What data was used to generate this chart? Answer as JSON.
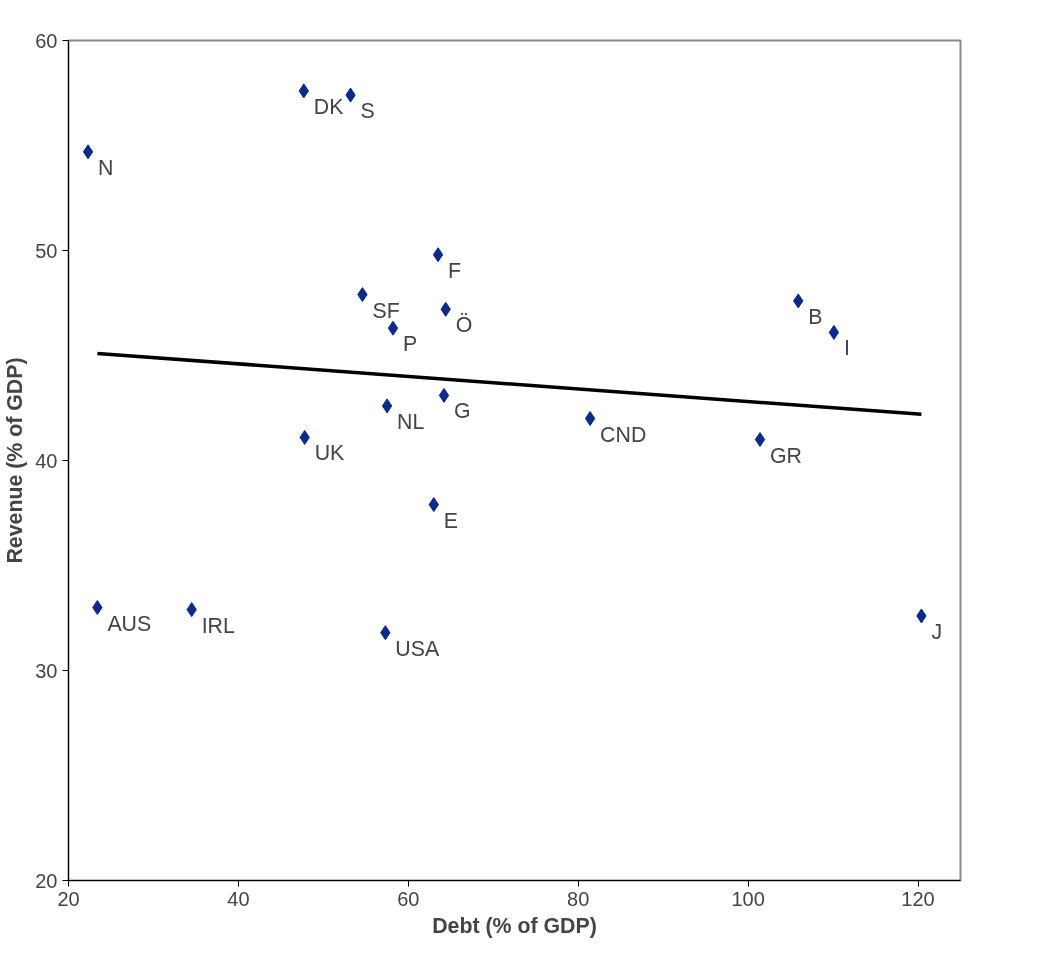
{
  "chart_data": {
    "type": "scatter",
    "xlabel": "Debt (% of GDP)",
    "ylabel": "Revenue (% of GDP)",
    "xlim": [
      20,
      125
    ],
    "ylim": [
      20,
      60
    ],
    "xticks": [
      20,
      40,
      60,
      80,
      100,
      120
    ],
    "yticks": [
      20,
      30,
      40,
      50,
      60
    ],
    "grid": false,
    "marker": "diamond",
    "series": [
      {
        "color": "#0a2a8c",
        "x": [
          22.3,
          47.7,
          53.2,
          63.5,
          54.6,
          64.4,
          58.2,
          105.9,
          110.1,
          57.5,
          64.2,
          47.8,
          81.4,
          101.4,
          63.0,
          23.4,
          34.5,
          57.3,
          120.4
        ],
        "values": [
          54.7,
          57.6,
          57.4,
          49.8,
          47.9,
          47.2,
          46.3,
          47.6,
          46.1,
          42.6,
          43.1,
          41.1,
          42.0,
          41.0,
          37.9,
          33.0,
          32.9,
          31.8,
          32.6
        ]
      },
      {
        "type": "line",
        "marker": "none",
        "color": "#000000",
        "x": [
          23.4,
          120.4
        ],
        "values": [
          45.1,
          42.2
        ]
      }
    ],
    "annotations": [
      {
        "text": "N",
        "x": 22.3,
        "y": 54.7
      },
      {
        "text": "DK",
        "x": 47.7,
        "y": 57.6
      },
      {
        "text": "S",
        "x": 53.2,
        "y": 57.4
      },
      {
        "text": "F",
        "x": 63.5,
        "y": 49.8
      },
      {
        "text": "SF",
        "x": 54.6,
        "y": 47.9
      },
      {
        "text": "Ö",
        "x": 64.4,
        "y": 47.2
      },
      {
        "text": "P",
        "x": 58.2,
        "y": 46.3
      },
      {
        "text": "B",
        "x": 105.9,
        "y": 47.6
      },
      {
        "text": "I",
        "x": 110.1,
        "y": 46.1
      },
      {
        "text": "NL",
        "x": 57.5,
        "y": 42.6
      },
      {
        "text": "G",
        "x": 64.2,
        "y": 43.1
      },
      {
        "text": "UK",
        "x": 47.8,
        "y": 41.1
      },
      {
        "text": "CND",
        "x": 81.4,
        "y": 42.0
      },
      {
        "text": "GR",
        "x": 101.4,
        "y": 41.0
      },
      {
        "text": "E",
        "x": 63.0,
        "y": 37.9
      },
      {
        "text": "AUS",
        "x": 23.4,
        "y": 33.0
      },
      {
        "text": "IRL",
        "x": 34.5,
        "y": 32.9
      },
      {
        "text": "USA",
        "x": 57.3,
        "y": 31.8
      },
      {
        "text": "J",
        "x": 120.4,
        "y": 32.6
      }
    ]
  }
}
